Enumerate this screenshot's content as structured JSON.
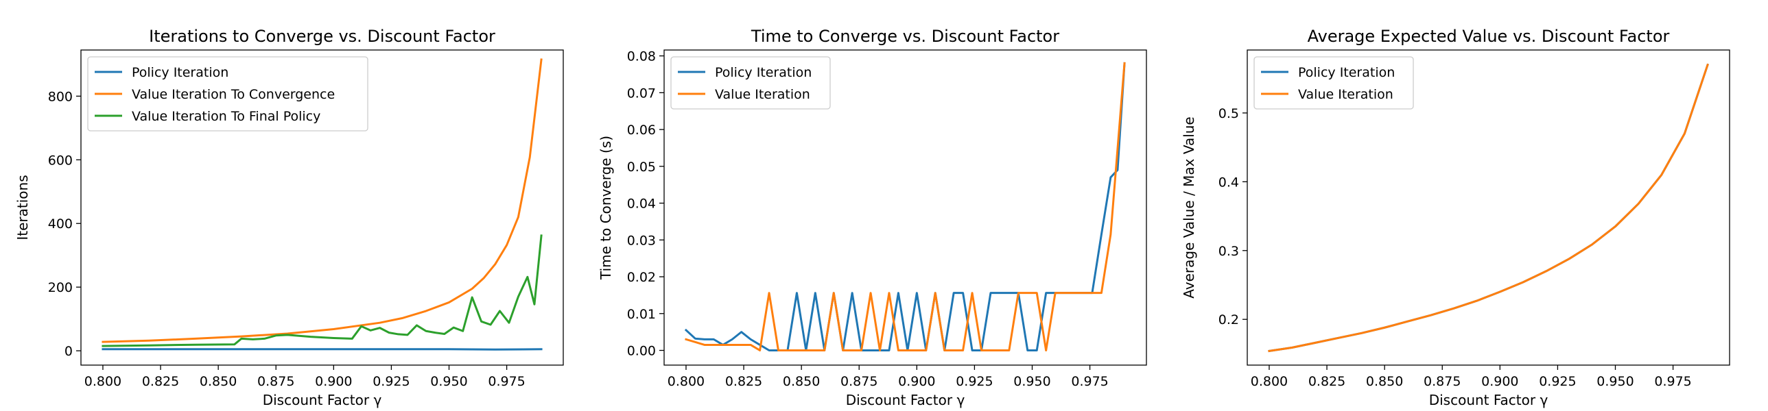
{
  "chart_data": [
    {
      "type": "line",
      "title": "Iterations to Converge vs. Discount Factor",
      "xlabel": "Discount Factor γ",
      "ylabel": "Iterations",
      "xlim": [
        0.7905,
        0.9995
      ],
      "ylim": [
        -45,
        945
      ],
      "xticks": [
        0.8,
        0.825,
        0.85,
        0.875,
        0.9,
        0.925,
        0.95,
        0.975
      ],
      "xtick_labels": [
        "0.800",
        "0.825",
        "0.850",
        "0.875",
        "0.900",
        "0.925",
        "0.950",
        "0.975"
      ],
      "yticks": [
        0,
        200,
        400,
        600,
        800
      ],
      "ytick_labels": [
        "0",
        "200",
        "400",
        "600",
        "800"
      ],
      "legend": "top-left",
      "grid": false,
      "series": [
        {
          "name": "Policy Iteration",
          "color": "#1f77b4",
          "x": [
            0.8,
            0.85,
            0.9,
            0.95,
            0.97,
            0.99
          ],
          "y": [
            5,
            5,
            5,
            5,
            4,
            5
          ]
        },
        {
          "name": "Value Iteration To Convergence",
          "color": "#ff7f0e",
          "x": [
            0.8,
            0.82,
            0.84,
            0.86,
            0.88,
            0.9,
            0.92,
            0.93,
            0.94,
            0.95,
            0.96,
            0.965,
            0.97,
            0.975,
            0.98,
            0.985,
            0.99
          ],
          "y": [
            28,
            32,
            38,
            45,
            54,
            68,
            88,
            103,
            125,
            152,
            195,
            228,
            272,
            332,
            420,
            608,
            915
          ]
        },
        {
          "name": "Value Iteration To Final Policy",
          "color": "#2ca02c",
          "x": [
            0.8,
            0.82,
            0.84,
            0.857,
            0.86,
            0.865,
            0.87,
            0.875,
            0.88,
            0.89,
            0.9,
            0.908,
            0.912,
            0.916,
            0.92,
            0.924,
            0.928,
            0.932,
            0.936,
            0.94,
            0.944,
            0.948,
            0.952,
            0.956,
            0.96,
            0.964,
            0.968,
            0.972,
            0.976,
            0.98,
            0.984,
            0.987,
            0.99
          ],
          "y": [
            15,
            17,
            19,
            20,
            38,
            36,
            38,
            48,
            50,
            44,
            40,
            38,
            77,
            64,
            72,
            57,
            52,
            50,
            80,
            62,
            57,
            53,
            73,
            62,
            168,
            92,
            82,
            125,
            88,
            170,
            232,
            146,
            362
          ]
        }
      ]
    },
    {
      "type": "line",
      "title": "Time to Converge vs. Discount Factor",
      "xlabel": "Discount Factor γ",
      "ylabel": "Time to Converge (s)",
      "xlim": [
        0.7905,
        0.9995
      ],
      "ylim": [
        -0.004,
        0.0816
      ],
      "xticks": [
        0.8,
        0.825,
        0.85,
        0.875,
        0.9,
        0.925,
        0.95,
        0.975
      ],
      "xtick_labels": [
        "0.800",
        "0.825",
        "0.850",
        "0.875",
        "0.900",
        "0.925",
        "0.950",
        "0.975"
      ],
      "yticks": [
        0.0,
        0.01,
        0.02,
        0.03,
        0.04,
        0.05,
        0.06,
        0.07,
        0.08
      ],
      "ytick_labels": [
        "0.00",
        "0.01",
        "0.02",
        "0.03",
        "0.04",
        "0.05",
        "0.06",
        "0.07",
        "0.08"
      ],
      "legend": "top-left",
      "grid": false,
      "series": [
        {
          "name": "Policy Iteration",
          "color": "#1f77b4",
          "x": [
            0.8,
            0.804,
            0.808,
            0.812,
            0.816,
            0.82,
            0.824,
            0.828,
            0.832,
            0.836,
            0.844,
            0.848,
            0.852,
            0.856,
            0.86,
            0.864,
            0.868,
            0.872,
            0.876,
            0.88,
            0.884,
            0.888,
            0.892,
            0.896,
            0.9,
            0.904,
            0.908,
            0.912,
            0.916,
            0.92,
            0.924,
            0.928,
            0.932,
            0.936,
            0.94,
            0.944,
            0.948,
            0.952,
            0.956,
            0.96,
            0.964,
            0.968,
            0.972,
            0.976,
            0.98,
            0.984,
            0.987,
            0.99
          ],
          "y": [
            0.0055,
            0.0032,
            0.003,
            0.003,
            0.0015,
            0.003,
            0.005,
            0.003,
            0.0015,
            0.0,
            0.0,
            0.0156,
            0.0,
            0.0156,
            0.0,
            0.0156,
            0.0,
            0.0156,
            0.0,
            0.0,
            0.0,
            0.0,
            0.0156,
            0.0,
            0.0156,
            0.0,
            0.0156,
            0.0,
            0.0156,
            0.0156,
            0.0,
            0.0,
            0.0156,
            0.0156,
            0.0156,
            0.0156,
            0.0,
            0.0,
            0.0156,
            0.0156,
            0.0156,
            0.0156,
            0.0156,
            0.0156,
            0.0315,
            0.047,
            0.049,
            0.078
          ]
        },
        {
          "name": "Value Iteration",
          "color": "#ff7f0e",
          "x": [
            0.8,
            0.808,
            0.812,
            0.816,
            0.82,
            0.824,
            0.828,
            0.832,
            0.836,
            0.84,
            0.844,
            0.86,
            0.864,
            0.868,
            0.872,
            0.876,
            0.88,
            0.884,
            0.888,
            0.892,
            0.896,
            0.9,
            0.904,
            0.908,
            0.912,
            0.916,
            0.92,
            0.924,
            0.928,
            0.932,
            0.936,
            0.94,
            0.944,
            0.948,
            0.952,
            0.956,
            0.96,
            0.964,
            0.968,
            0.972,
            0.976,
            0.98,
            0.984,
            0.99
          ],
          "y": [
            0.003,
            0.0015,
            0.0015,
            0.0015,
            0.0015,
            0.0015,
            0.0015,
            0.0,
            0.0156,
            0.0,
            0.0,
            0.0,
            0.0156,
            0.0,
            0.0,
            0.0,
            0.0156,
            0.0,
            0.0156,
            0.0,
            0.0,
            0.0,
            0.0,
            0.0156,
            0.0,
            0.0,
            0.0,
            0.0156,
            0.0,
            0.0,
            0.0,
            0.0,
            0.0156,
            0.0156,
            0.0156,
            0.0,
            0.0156,
            0.0156,
            0.0156,
            0.0156,
            0.0156,
            0.0156,
            0.0315,
            0.078
          ]
        }
      ]
    },
    {
      "type": "line",
      "title": "Average Expected Value vs. Discount Factor",
      "xlabel": "Discount Factor γ",
      "ylabel": "Average Value / Max Value",
      "xlim": [
        0.7905,
        0.9995
      ],
      "ylim": [
        0.1335,
        0.5915
      ],
      "xticks": [
        0.8,
        0.825,
        0.85,
        0.875,
        0.9,
        0.925,
        0.95,
        0.975
      ],
      "xtick_labels": [
        "0.800",
        "0.825",
        "0.850",
        "0.875",
        "0.900",
        "0.925",
        "0.950",
        "0.975"
      ],
      "yticks": [
        0.2,
        0.3,
        0.4,
        0.5
      ],
      "ytick_labels": [
        "0.2",
        "0.3",
        "0.4",
        "0.5"
      ],
      "legend": "top-left",
      "grid": false,
      "series": [
        {
          "name": "Policy Iteration",
          "color": "#1f77b4",
          "x": [
            0.8,
            0.81,
            0.82,
            0.83,
            0.84,
            0.85,
            0.86,
            0.87,
            0.88,
            0.89,
            0.9,
            0.91,
            0.92,
            0.93,
            0.94,
            0.95,
            0.96,
            0.97,
            0.98,
            0.99
          ],
          "y": [
            0.154,
            0.159,
            0.166,
            0.173,
            0.18,
            0.188,
            0.197,
            0.206,
            0.216,
            0.227,
            0.24,
            0.254,
            0.27,
            0.288,
            0.309,
            0.335,
            0.368,
            0.41,
            0.47,
            0.57
          ]
        },
        {
          "name": "Value Iteration",
          "color": "#ff7f0e",
          "x": [
            0.8,
            0.81,
            0.82,
            0.83,
            0.84,
            0.85,
            0.86,
            0.87,
            0.88,
            0.89,
            0.9,
            0.91,
            0.92,
            0.93,
            0.94,
            0.95,
            0.96,
            0.97,
            0.98,
            0.99
          ],
          "y": [
            0.154,
            0.159,
            0.166,
            0.173,
            0.18,
            0.188,
            0.197,
            0.206,
            0.216,
            0.227,
            0.24,
            0.254,
            0.27,
            0.288,
            0.309,
            0.335,
            0.368,
            0.41,
            0.47,
            0.57
          ]
        }
      ]
    }
  ]
}
